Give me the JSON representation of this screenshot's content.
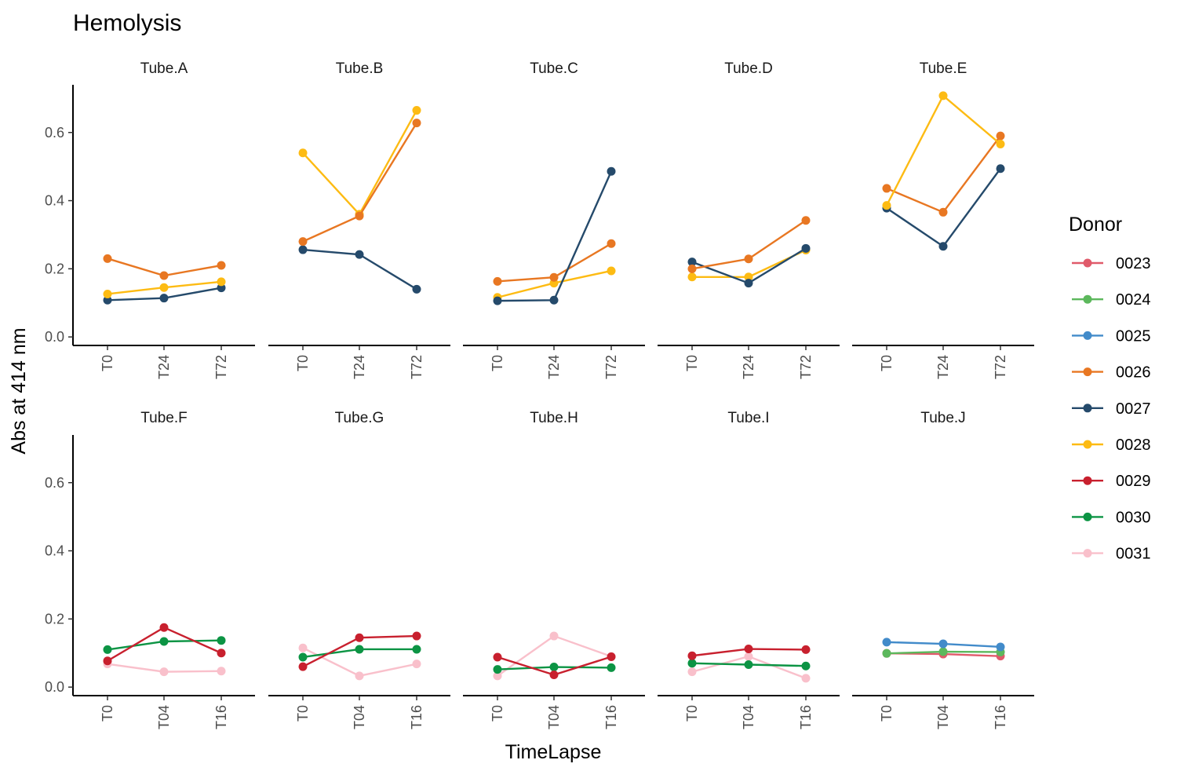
{
  "chart_data": {
    "type": "line",
    "title": "Hemolysis",
    "xlabel": "TimeLapse",
    "ylabel": "Abs at 414 nm",
    "ylim": [
      -0.025,
      0.74
    ],
    "yticks": [
      "0.0",
      "0.2",
      "0.4",
      "0.6"
    ],
    "ytick_values": [
      0,
      0.2,
      0.4,
      0.6
    ],
    "grid": false,
    "legend": {
      "title": "Donor",
      "placement": "right",
      "entries": [
        {
          "name": "0023",
          "color": "#e05a6a"
        },
        {
          "name": "0024",
          "color": "#5cb85c"
        },
        {
          "name": "0025",
          "color": "#428bca"
        },
        {
          "name": "0026",
          "color": "#e87722"
        },
        {
          "name": "0027",
          "color": "#254a6b"
        },
        {
          "name": "0028",
          "color": "#fdbb13"
        },
        {
          "name": "0029",
          "color": "#c8202e"
        },
        {
          "name": "0030",
          "color": "#0c9444"
        },
        {
          "name": "0031",
          "color": "#f9c0cb"
        }
      ]
    },
    "panels": [
      {
        "name": "Tube.A",
        "row": 0,
        "col": 0,
        "categories": [
          "T0",
          "T24",
          "T72"
        ],
        "series": [
          {
            "name": "0026",
            "values": [
              0.23,
              0.18,
              0.21
            ]
          },
          {
            "name": "0027",
            "values": [
              0.108,
              0.114,
              0.144
            ]
          },
          {
            "name": "0028",
            "values": [
              0.126,
              0.145,
              0.162
            ]
          }
        ]
      },
      {
        "name": "Tube.B",
        "row": 0,
        "col": 1,
        "categories": [
          "T0",
          "T24",
          "T72"
        ],
        "series": [
          {
            "name": "0027",
            "values": [
              0.256,
              0.242,
              0.14
            ]
          },
          {
            "name": "0028",
            "values": [
              0.54,
              0.36,
              0.665
            ]
          },
          {
            "name": "0026",
            "values": [
              0.28,
              0.355,
              0.628
            ]
          }
        ]
      },
      {
        "name": "Tube.C",
        "row": 0,
        "col": 2,
        "categories": [
          "T0",
          "T24",
          "T72"
        ],
        "series": [
          {
            "name": "0028",
            "values": [
              0.116,
              0.158,
              0.194
            ]
          },
          {
            "name": "0026",
            "values": [
              0.163,
              0.175,
              0.274
            ]
          },
          {
            "name": "0027",
            "values": [
              0.106,
              0.108,
              0.486
            ]
          }
        ]
      },
      {
        "name": "Tube.D",
        "row": 0,
        "col": 3,
        "categories": [
          "T0",
          "T24",
          "T72"
        ],
        "series": [
          {
            "name": "0028",
            "values": [
              0.176,
              0.176,
              0.255
            ]
          },
          {
            "name": "0027",
            "values": [
              0.22,
              0.158,
              0.26
            ]
          },
          {
            "name": "0026",
            "values": [
              0.2,
              0.229,
              0.342
            ]
          }
        ]
      },
      {
        "name": "Tube.E",
        "row": 0,
        "col": 4,
        "categories": [
          "T0",
          "T24",
          "T72"
        ],
        "series": [
          {
            "name": "0027",
            "values": [
              0.378,
              0.266,
              0.494
            ]
          },
          {
            "name": "0026",
            "values": [
              0.436,
              0.366,
              0.59
            ]
          },
          {
            "name": "0028",
            "values": [
              0.386,
              0.708,
              0.566
            ]
          }
        ]
      },
      {
        "name": "Tube.F",
        "row": 1,
        "col": 0,
        "categories": [
          "T0",
          "T04",
          "T16"
        ],
        "series": [
          {
            "name": "0031",
            "values": [
              0.068,
              0.045,
              0.047
            ]
          },
          {
            "name": "0030",
            "values": [
              0.11,
              0.134,
              0.137
            ]
          },
          {
            "name": "0029",
            "values": [
              0.077,
              0.175,
              0.1
            ]
          }
        ]
      },
      {
        "name": "Tube.G",
        "row": 1,
        "col": 1,
        "categories": [
          "T0",
          "T04",
          "T16"
        ],
        "series": [
          {
            "name": "0031",
            "values": [
              0.115,
              0.033,
              0.068
            ]
          },
          {
            "name": "0030",
            "values": [
              0.088,
              0.111,
              0.111
            ]
          },
          {
            "name": "0029",
            "values": [
              0.06,
              0.145,
              0.15
            ]
          }
        ]
      },
      {
        "name": "Tube.H",
        "row": 1,
        "col": 2,
        "categories": [
          "T0",
          "T04",
          "T16"
        ],
        "series": [
          {
            "name": "0031",
            "values": [
              0.033,
              0.15,
              0.09
            ]
          },
          {
            "name": "0030",
            "values": [
              0.052,
              0.059,
              0.057
            ]
          },
          {
            "name": "0029",
            "values": [
              0.088,
              0.036,
              0.089
            ]
          }
        ]
      },
      {
        "name": "Tube.I",
        "row": 1,
        "col": 3,
        "categories": [
          "T0",
          "T04",
          "T16"
        ],
        "series": [
          {
            "name": "0031",
            "values": [
              0.045,
              0.09,
              0.026
            ]
          },
          {
            "name": "0030",
            "values": [
              0.07,
              0.066,
              0.062
            ]
          },
          {
            "name": "0029",
            "values": [
              0.092,
              0.112,
              0.11
            ]
          }
        ]
      },
      {
        "name": "Tube.J",
        "row": 1,
        "col": 4,
        "categories": [
          "T0",
          "T04",
          "T16"
        ],
        "series": [
          {
            "name": "0023",
            "values": [
              0.099,
              0.097,
              0.091
            ]
          },
          {
            "name": "0024",
            "values": [
              0.099,
              0.104,
              0.103
            ]
          },
          {
            "name": "0025",
            "values": [
              0.132,
              0.127,
              0.118
            ]
          }
        ]
      }
    ]
  }
}
